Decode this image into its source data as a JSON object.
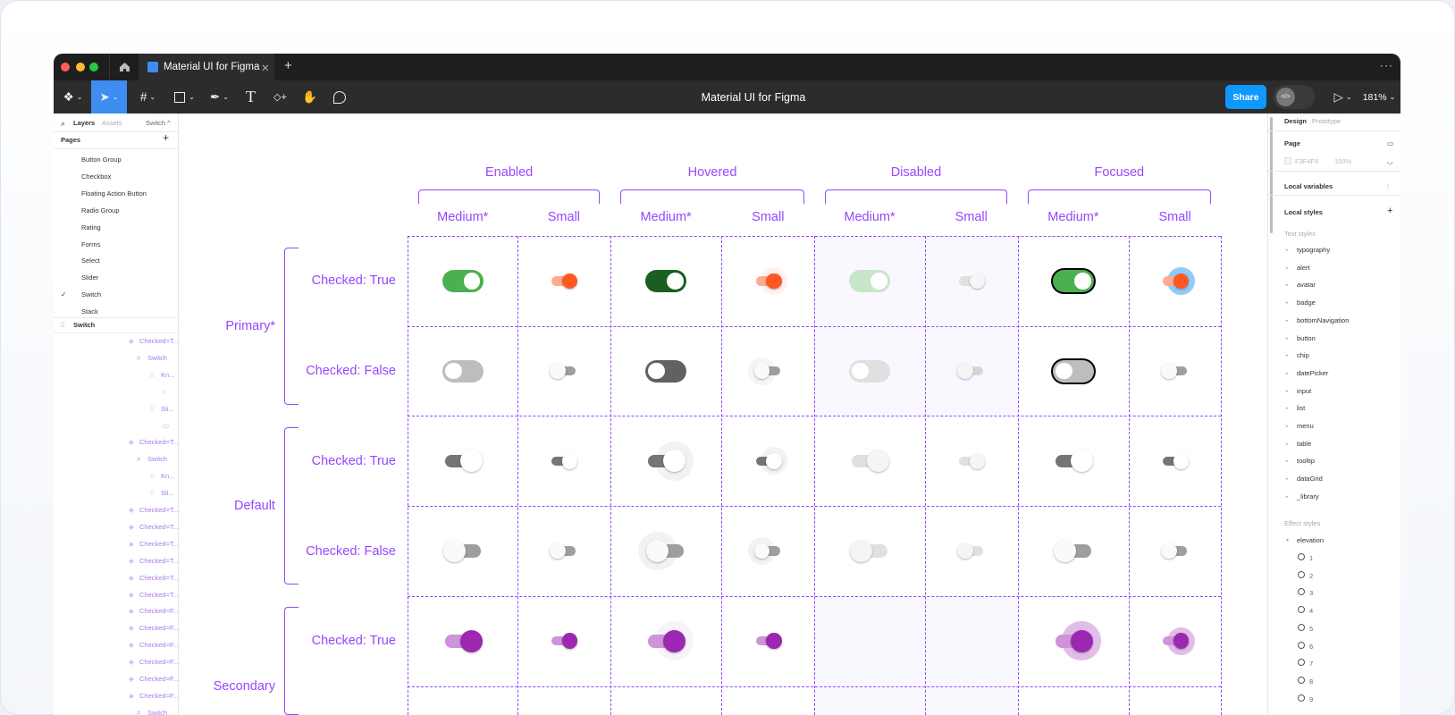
{
  "window": {
    "tab_title": "Material UI for Figma",
    "title": "Material UI for Figma",
    "share": "Share",
    "zoom": "181%",
    "more": "···"
  },
  "left": {
    "tabs": {
      "layers": "Layers",
      "assets": "Assets",
      "page": "Switch ^"
    },
    "pages_title": "Pages",
    "pages": [
      "Button Group",
      "Checkbox",
      "Floating Action Button",
      "Radio Group",
      "Rating",
      "Forms",
      "Select",
      "Slider",
      "Switch",
      "Stack"
    ],
    "current_page": "Switch",
    "layers_root": "Switch",
    "layers": [
      {
        "icon": "variant",
        "label": "Checked=T...",
        "level": 0
      },
      {
        "icon": "frame",
        "label": "Switch",
        "level": 1
      },
      {
        "icon": "component",
        "label": "Kn...",
        "level": 2
      },
      {
        "icon": "ellipse",
        "label": "",
        "level": 3
      },
      {
        "icon": "component",
        "label": "Sli...",
        "level": 2
      },
      {
        "icon": "rect",
        "label": "",
        "level": 3
      },
      {
        "icon": "variant",
        "label": "Checked=T...",
        "level": 0
      },
      {
        "icon": "frame",
        "label": "Switch",
        "level": 1
      },
      {
        "icon": "component",
        "label": "Kn...",
        "level": 2
      },
      {
        "icon": "component",
        "label": "Sli...",
        "level": 2
      },
      {
        "icon": "variant",
        "label": "Checked=T...",
        "level": 0
      },
      {
        "icon": "variant",
        "label": "Checked=T...",
        "level": 0
      },
      {
        "icon": "variant",
        "label": "Checked=T...",
        "level": 0
      },
      {
        "icon": "variant",
        "label": "Checked=T...",
        "level": 0
      },
      {
        "icon": "variant",
        "label": "Checked=T...",
        "level": 0
      },
      {
        "icon": "variant",
        "label": "Checked=T...",
        "level": 0
      },
      {
        "icon": "variant",
        "label": "Checked=F...",
        "level": 0
      },
      {
        "icon": "variant",
        "label": "Checked=F...",
        "level": 0
      },
      {
        "icon": "variant",
        "label": "Checked=F...",
        "level": 0
      },
      {
        "icon": "variant",
        "label": "Checked=F...",
        "level": 0
      },
      {
        "icon": "variant",
        "label": "Checked=F...",
        "level": 0
      },
      {
        "icon": "variant",
        "label": "Checked=F...",
        "level": 0
      },
      {
        "icon": "frame",
        "label": "Switch",
        "level": 1
      }
    ]
  },
  "right": {
    "tabs": {
      "design": "Design",
      "prototype": "Prototype"
    },
    "page_label": "Page",
    "page_color": "F3F4F6",
    "page_opacity": "100%",
    "local_variables": "Local variables",
    "local_styles": "Local styles",
    "text_styles_label": "Text styles",
    "text_styles": [
      "typography",
      "alert",
      "avatar",
      "badge",
      "bottomNavigation",
      "button",
      "chip",
      "datePicker",
      "input",
      "list",
      "menu",
      "table",
      "tooltip",
      "dataGrid",
      "_library"
    ],
    "effect_styles_label": "Effect styles",
    "effect_group": "elevation",
    "effects": [
      "1",
      "2",
      "3",
      "4",
      "5",
      "6",
      "7",
      "8",
      "9"
    ]
  },
  "canvas": {
    "states": [
      "Enabled",
      "Hovered",
      "Disabled",
      "Focused"
    ],
    "sizes": [
      "Medium*",
      "Small",
      "Medium*",
      "Small",
      "Medium*",
      "Small",
      "Medium*",
      "Small"
    ],
    "groups": [
      "Primary*",
      "Default",
      "Secondary"
    ],
    "row_labels": [
      "Checked: True",
      "Checked: False",
      "Checked: True",
      "Checked: False",
      "Checked: True"
    ],
    "accent": "#9747ff",
    "cells": [
      [
        {
          "kind": "pill",
          "checked": true,
          "track": "#4caf50",
          "thumb": "#ffffff"
        },
        {
          "kind": "mui",
          "checked": true,
          "track": "#ffab91",
          "thumb": "#ff5722"
        },
        {
          "kind": "pill",
          "checked": true,
          "track": "#1b5e20",
          "thumb": "#ffffff"
        },
        {
          "kind": "mui",
          "checked": true,
          "track": "#ffab91",
          "thumb": "#ff5722",
          "halo": "rgba(255,87,34,0.08)"
        },
        {
          "kind": "pill",
          "checked": true,
          "track": "#c8e6c9",
          "thumb": "#ffffff"
        },
        {
          "kind": "mui",
          "checked": true,
          "track": "#e0e0e0",
          "thumb": "#f5f5f5"
        },
        {
          "kind": "pill",
          "checked": true,
          "track": "#4caf50",
          "thumb": "#ffffff",
          "outline": "#000000"
        },
        {
          "kind": "mui",
          "checked": true,
          "track": "#ffab91",
          "thumb": "#ff5722",
          "halo": "#90caf9"
        }
      ],
      [
        {
          "kind": "pill",
          "checked": false,
          "track": "#bdbdbd",
          "thumb": "#ffffff"
        },
        {
          "kind": "mui",
          "checked": false,
          "track": "#9e9e9e",
          "thumb": "#fafafa"
        },
        {
          "kind": "pill",
          "checked": false,
          "track": "#616161",
          "thumb": "#ffffff"
        },
        {
          "kind": "mui",
          "checked": false,
          "track": "#9e9e9e",
          "thumb": "#fafafa",
          "halo": "rgba(0,0,0,0.04)"
        },
        {
          "kind": "pill",
          "checked": false,
          "track": "#e0e0e0",
          "thumb": "#ffffff"
        },
        {
          "kind": "mui",
          "checked": false,
          "track": "#d6d6d6",
          "thumb": "#f5f5f5"
        },
        {
          "kind": "pill",
          "checked": false,
          "track": "#bdbdbd",
          "thumb": "#ffffff",
          "outline": "#000000"
        },
        {
          "kind": "mui",
          "checked": false,
          "track": "#9e9e9e",
          "thumb": "#fafafa"
        }
      ],
      [
        {
          "kind": "mui",
          "checked": true,
          "track": "#757575",
          "thumb": "#ffffff"
        },
        {
          "kind": "mui",
          "checked": true,
          "track": "#757575",
          "thumb": "#ffffff"
        },
        {
          "kind": "mui",
          "checked": true,
          "track": "#757575",
          "thumb": "#ffffff",
          "halo": "rgba(0,0,0,0.05)"
        },
        {
          "kind": "mui",
          "checked": true,
          "track": "#757575",
          "thumb": "#ffffff",
          "halo": "rgba(0,0,0,0.05)"
        },
        {
          "kind": "mui",
          "checked": true,
          "track": "#e0e0e0",
          "thumb": "#f5f5f5"
        },
        {
          "kind": "mui",
          "checked": true,
          "track": "#e0e0e0",
          "thumb": "#f5f5f5"
        },
        {
          "kind": "mui",
          "checked": true,
          "track": "#757575",
          "thumb": "#ffffff"
        },
        {
          "kind": "mui",
          "checked": true,
          "track": "#757575",
          "thumb": "#ffffff"
        }
      ],
      [
        {
          "kind": "mui",
          "checked": false,
          "track": "#9e9e9e",
          "thumb": "#fafafa"
        },
        {
          "kind": "mui",
          "checked": false,
          "track": "#9e9e9e",
          "thumb": "#fafafa"
        },
        {
          "kind": "mui",
          "checked": false,
          "track": "#9e9e9e",
          "thumb": "#fafafa",
          "halo": "rgba(0,0,0,0.05)"
        },
        {
          "kind": "mui",
          "checked": false,
          "track": "#9e9e9e",
          "thumb": "#fafafa",
          "halo": "rgba(0,0,0,0.05)"
        },
        {
          "kind": "mui",
          "checked": false,
          "track": "#e0e0e0",
          "thumb": "#f5f5f5"
        },
        {
          "kind": "mui",
          "checked": false,
          "track": "#e0e0e0",
          "thumb": "#f5f5f5"
        },
        {
          "kind": "mui",
          "checked": false,
          "track": "#9e9e9e",
          "thumb": "#fafafa"
        },
        {
          "kind": "mui",
          "checked": false,
          "track": "#9e9e9e",
          "thumb": "#fafafa"
        }
      ],
      [
        {
          "kind": "mui",
          "checked": true,
          "track": "#ce93d8",
          "thumb": "#9c27b0"
        },
        {
          "kind": "mui",
          "checked": true,
          "track": "#ce93d8",
          "thumb": "#9c27b0"
        },
        {
          "kind": "mui",
          "checked": true,
          "track": "#ce93d8",
          "thumb": "#9c27b0",
          "halo": "rgba(156,39,176,0.06)"
        },
        {
          "kind": "mui",
          "checked": true,
          "track": "#ce93d8",
          "thumb": "#9c27b0"
        },
        {
          "kind": "none"
        },
        {
          "kind": "none"
        },
        {
          "kind": "mui",
          "checked": true,
          "track": "#ce93d8",
          "thumb": "#9c27b0",
          "halo": "rgba(156,39,176,0.3)"
        },
        {
          "kind": "mui",
          "checked": true,
          "track": "#ce93d8",
          "thumb": "#9c27b0",
          "halo": "rgba(156,39,176,0.3)"
        }
      ]
    ]
  }
}
